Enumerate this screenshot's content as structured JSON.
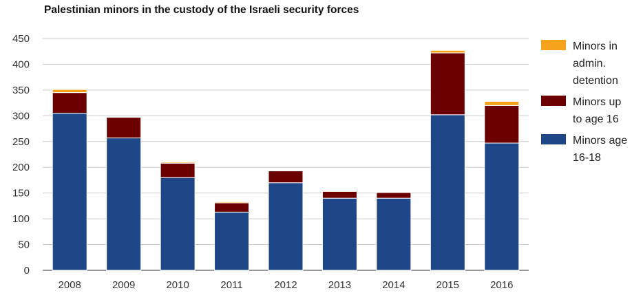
{
  "chart_data": {
    "type": "bar",
    "stacked": true,
    "title": "Palestinian minors in the custody of the Israeli security forces",
    "xlabel": "",
    "ylabel": "",
    "categories": [
      "2008",
      "2009",
      "2010",
      "2011",
      "2012",
      "2013",
      "2014",
      "2015",
      "2016"
    ],
    "ylim": [
      0,
      450
    ],
    "yticks": [
      0,
      50,
      100,
      150,
      200,
      250,
      300,
      350,
      400,
      450
    ],
    "grid": true,
    "legend_position": "right",
    "series": [
      {
        "name": "Minors age 16-18",
        "legend_lines": [
          "Minors age",
          "16-18"
        ],
        "color": "#1f4788",
        "values": [
          305,
          257,
          180,
          113,
          170,
          140,
          140,
          302,
          247
        ]
      },
      {
        "name": "Minors up to age 16",
        "legend_lines": [
          "Minors up",
          "to age 16"
        ],
        "color": "#6b0000",
        "values": [
          40,
          40,
          28,
          18,
          23,
          13,
          11,
          120,
          73
        ]
      },
      {
        "name": "Minors in admin. detention",
        "legend_lines": [
          "Minors in",
          "admin.",
          "detention"
        ],
        "color": "#f5a31a",
        "values": [
          6,
          0,
          2,
          2,
          0,
          0,
          0,
          5,
          8
        ]
      }
    ]
  }
}
